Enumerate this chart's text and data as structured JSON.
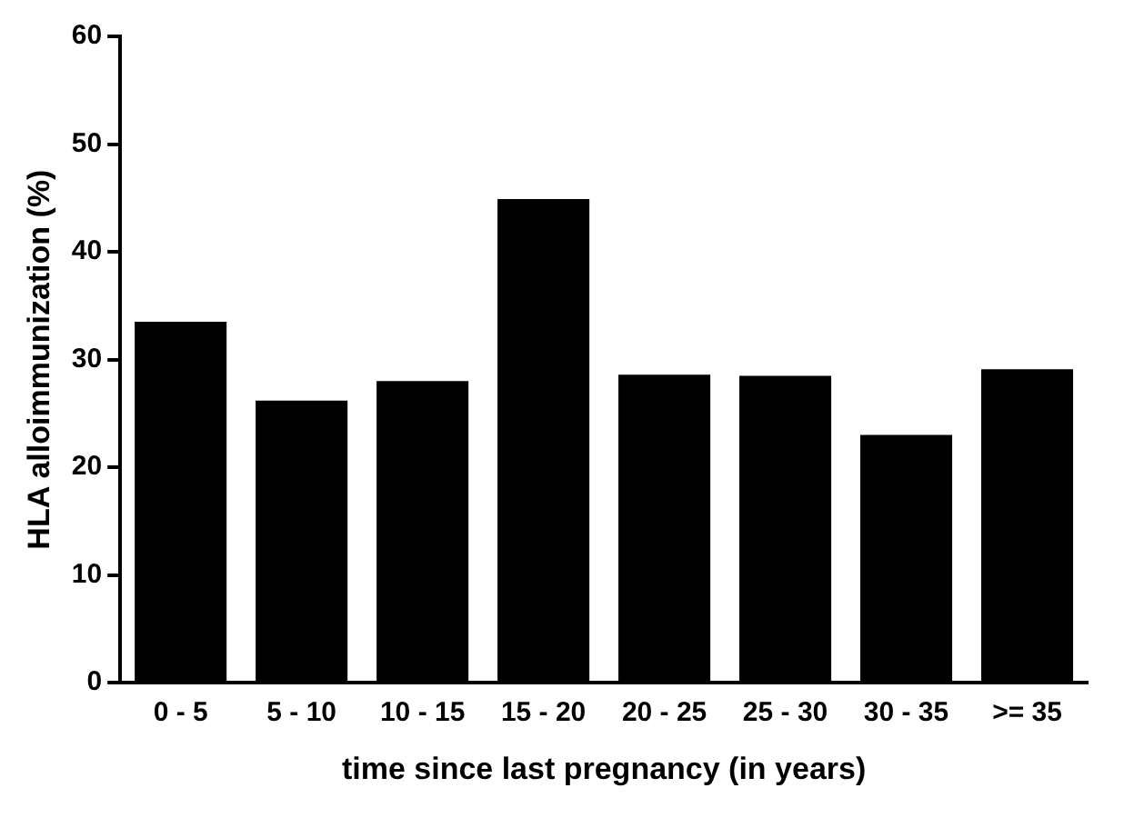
{
  "chart_data": {
    "type": "bar",
    "xlabel": "time since last pregnancy (in years)",
    "ylabel": "HLA alloimmunization (%)",
    "categories": [
      "0 - 5",
      "5 - 10",
      "10 - 15",
      "15 - 20",
      "20 - 25",
      "25 - 30",
      "30 - 35",
      ">= 35"
    ],
    "values": [
      33.5,
      26.2,
      28.0,
      44.9,
      28.6,
      28.5,
      23.0,
      29.1
    ],
    "color": "#000000",
    "ylim": [
      0,
      60
    ],
    "yticks": [
      0,
      10,
      20,
      30,
      40,
      50,
      60
    ],
    "grid": false,
    "legend": false
  }
}
